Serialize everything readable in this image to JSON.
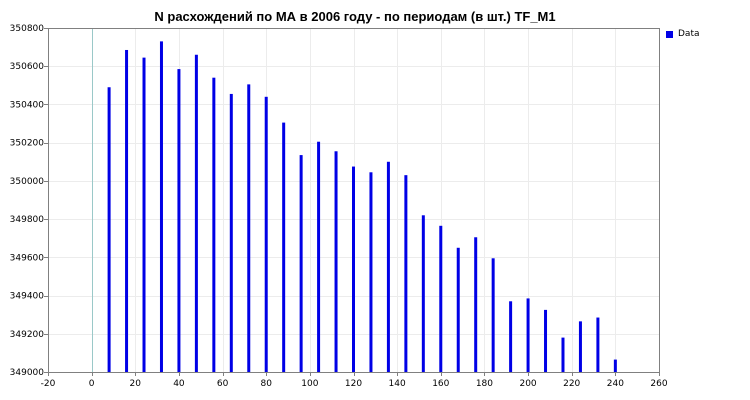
{
  "chart_data": {
    "type": "bar",
    "title": "N расхождений по МА в 2006 году - по периодам (в шт.) TF_M1",
    "xlabel": "",
    "ylabel": "",
    "xlim": [
      -20,
      260
    ],
    "ylim": [
      349000,
      350800
    ],
    "x_ticks": [
      -20,
      0,
      20,
      40,
      60,
      80,
      100,
      120,
      140,
      160,
      180,
      200,
      220,
      240,
      260
    ],
    "y_ticks": [
      349000,
      349200,
      349400,
      349600,
      349800,
      350000,
      350200,
      350400,
      350600,
      350800
    ],
    "grid": true,
    "legend_position": "top-right",
    "color": "#0000e6",
    "series": [
      {
        "name": "Data",
        "x": [
          8,
          16,
          24,
          32,
          40,
          48,
          56,
          64,
          72,
          80,
          88,
          96,
          104,
          112,
          120,
          128,
          136,
          144,
          152,
          160,
          168,
          176,
          184,
          192,
          200,
          208,
          216,
          224,
          232,
          240
        ],
        "values": [
          350490,
          350685,
          350645,
          350730,
          350585,
          350660,
          350540,
          350455,
          350505,
          350440,
          350305,
          350135,
          350205,
          350155,
          350075,
          350045,
          350100,
          350030,
          349820,
          349765,
          349650,
          349705,
          349595,
          349370,
          349385,
          349325,
          349180,
          349265,
          349285,
          349065
        ]
      }
    ]
  }
}
